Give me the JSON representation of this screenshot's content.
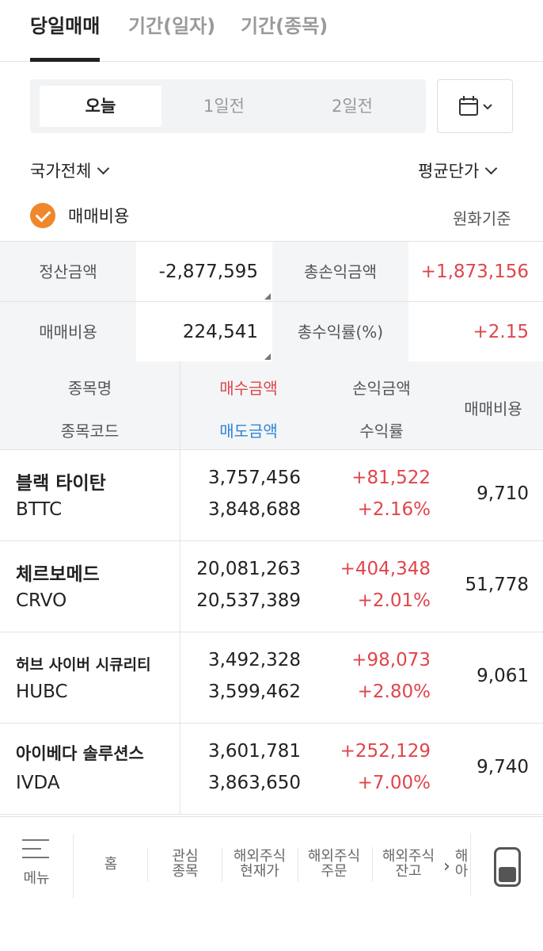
{
  "tabs": [
    "당일매매",
    "기간(일자)",
    "기간(종목)"
  ],
  "days": [
    "오늘",
    "1일전",
    "2일전"
  ],
  "filters": {
    "country": "국가전체",
    "price": "평균단가",
    "fee_check": "매매비용",
    "currency": "원화기준"
  },
  "summary": {
    "settle_label": "정산금액",
    "settle_value": "-2,877,595",
    "pl_label": "총손익금액",
    "pl_value": "+1,873,156",
    "fee_label": "매매비용",
    "fee_value": "224,541",
    "rate_label": "총수익률(%)",
    "rate_value": "+2.15"
  },
  "table_header": {
    "name": "종목명",
    "code": "종목코드",
    "buy": "매수금액",
    "sell": "매도금액",
    "pl": "손익금액",
    "rate": "수익률",
    "fee": "매매비용"
  },
  "rows": [
    {
      "name": "블랙 타이탄",
      "code": "BTTC",
      "buy": "3,757,456",
      "sell": "3,848,688",
      "pl": "+81,522",
      "rate": "+2.16%",
      "fee": "9,710"
    },
    {
      "name": "체르보메드",
      "code": "CRVO",
      "buy": "20,081,263",
      "sell": "20,537,389",
      "pl": "+404,348",
      "rate": "+2.01%",
      "fee": "51,778"
    },
    {
      "name": "허브 사이버 시큐리티",
      "code": "HUBC",
      "buy": "3,492,328",
      "sell": "3,599,462",
      "pl": "+98,073",
      "rate": "+2.80%",
      "fee": "9,061"
    },
    {
      "name": "아이베다 솔루션스",
      "code": "IVDA",
      "buy": "3,601,781",
      "sell": "3,863,650",
      "pl": "+252,129",
      "rate": "+7.00%",
      "fee": "9,740"
    }
  ],
  "nav": {
    "menu": "메뉴",
    "home": "홈",
    "watch": [
      "관심",
      "종목"
    ],
    "price": [
      "해외주식",
      "현재가"
    ],
    "order": [
      "해외주식",
      "주문"
    ],
    "balance": [
      "해외주식",
      "잔고"
    ],
    "partial": [
      "해",
      "아"
    ]
  },
  "colors": {
    "accent": "#f0872b",
    "up": "#e0454b",
    "blue": "#2f86d6"
  }
}
